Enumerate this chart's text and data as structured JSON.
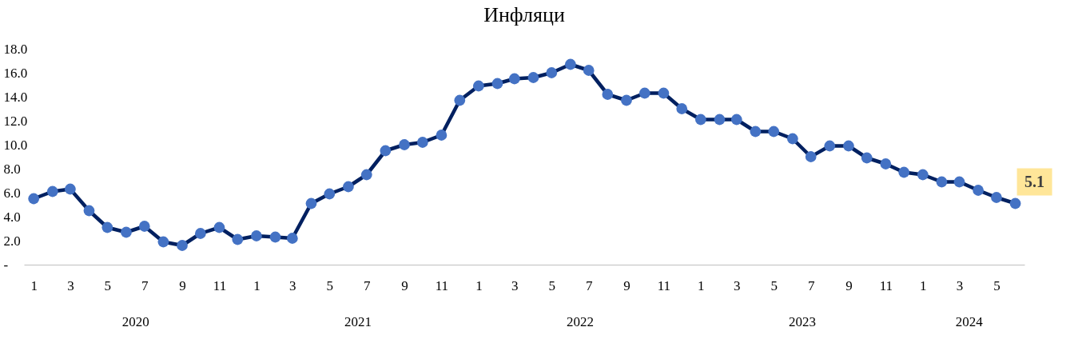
{
  "chart_data": {
    "type": "line",
    "title": "Инфляци",
    "x": [
      "2020-01",
      "2020-02",
      "2020-03",
      "2020-04",
      "2020-05",
      "2020-06",
      "2020-07",
      "2020-08",
      "2020-09",
      "2020-10",
      "2020-11",
      "2020-12",
      "2021-01",
      "2021-02",
      "2021-03",
      "2021-04",
      "2021-05",
      "2021-06",
      "2021-07",
      "2021-08",
      "2021-09",
      "2021-10",
      "2021-11",
      "2021-12",
      "2022-01",
      "2022-02",
      "2022-03",
      "2022-04",
      "2022-05",
      "2022-06",
      "2022-07",
      "2022-08",
      "2022-09",
      "2022-10",
      "2022-11",
      "2022-12",
      "2023-01",
      "2023-02",
      "2023-03",
      "2023-04",
      "2023-05",
      "2023-06",
      "2023-07",
      "2023-08",
      "2023-09",
      "2023-10",
      "2023-11",
      "2023-12",
      "2024-01",
      "2024-02",
      "2024-03",
      "2024-04",
      "2024-05",
      "2024-06"
    ],
    "series": [
      {
        "color": "#002060",
        "values": [
          5.5,
          6.1,
          6.3,
          4.5,
          3.1,
          2.7,
          3.2,
          1.9,
          1.6,
          2.6,
          3.1,
          2.1,
          2.4,
          2.3,
          2.2,
          5.1,
          5.9,
          6.5,
          7.5,
          9.5,
          10.0,
          10.2,
          10.8,
          13.7,
          14.9,
          15.1,
          15.5,
          15.6,
          16.0,
          16.7,
          16.2,
          14.2,
          13.7,
          14.3,
          14.3,
          13.0,
          12.1,
          12.1,
          12.1,
          11.1,
          11.1,
          10.5,
          9.0,
          9.9,
          9.9,
          8.9,
          8.4,
          7.7,
          7.5,
          6.9,
          6.9,
          6.2,
          5.6,
          5.1
        ]
      }
    ],
    "marker": "circle",
    "xlim": [
      "2019-12-16",
      "2024-06-16"
    ],
    "xticks": [
      {
        "value": "2020-01",
        "label": "1"
      },
      {
        "value": "2020-03",
        "label": "3"
      },
      {
        "value": "2020-05",
        "label": "5"
      },
      {
        "value": "2020-07",
        "label": "7"
      },
      {
        "value": "2020-09",
        "label": "9"
      },
      {
        "value": "2020-11",
        "label": "11"
      },
      {
        "value": "2021-01",
        "label": "1"
      },
      {
        "value": "2021-03",
        "label": "3"
      },
      {
        "value": "2021-05",
        "label": "5"
      },
      {
        "value": "2021-07",
        "label": "7"
      },
      {
        "value": "2021-09",
        "label": "9"
      },
      {
        "value": "2021-11",
        "label": "11"
      },
      {
        "value": "2022-01",
        "label": "1"
      },
      {
        "value": "2022-03",
        "label": "3"
      },
      {
        "value": "2022-05",
        "label": "5"
      },
      {
        "value": "2022-07",
        "label": "7"
      },
      {
        "value": "2022-09",
        "label": "9"
      },
      {
        "value": "2022-11",
        "label": "11"
      },
      {
        "value": "2023-01",
        "label": "1"
      },
      {
        "value": "2023-03",
        "label": "3"
      },
      {
        "value": "2023-05",
        "label": "5"
      },
      {
        "value": "2023-07",
        "label": "7"
      },
      {
        "value": "2023-09",
        "label": "9"
      },
      {
        "value": "2023-11",
        "label": "11"
      },
      {
        "value": "2024-01",
        "label": "1"
      },
      {
        "value": "2024-03",
        "label": "3"
      },
      {
        "value": "2024-05",
        "label": "5"
      }
    ],
    "ylim": [
      0,
      18
    ],
    "yticks": [
      {
        "value": 0,
        "label": "-"
      },
      {
        "value": 2,
        "label": "2.0"
      },
      {
        "value": 4,
        "label": "4.0"
      },
      {
        "value": 6,
        "label": "6.0"
      },
      {
        "value": 8,
        "label": "8.0"
      },
      {
        "value": 10,
        "label": "10.0"
      },
      {
        "value": 12,
        "label": "12.0"
      },
      {
        "value": 14,
        "label": "14.0"
      },
      {
        "value": 16,
        "label": "16.0"
      },
      {
        "value": 18,
        "label": "18.0"
      }
    ],
    "annotations": [
      {
        "text": "5.1",
        "x": "2024-06",
        "y": 5.1
      },
      "2020",
      "2021",
      "2022",
      "2023",
      "2024"
    ],
    "grid": false
  }
}
